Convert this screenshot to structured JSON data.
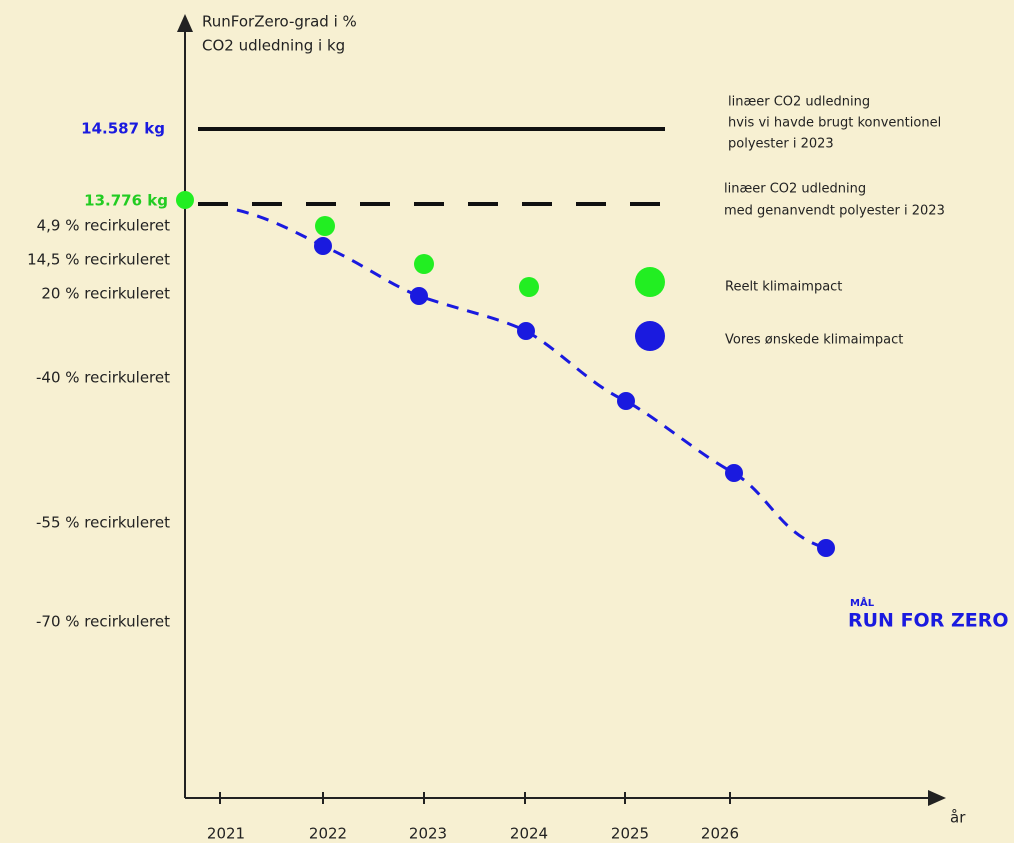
{
  "axis_title": [
    "RunForZero-grad i %",
    "CO2 udledning i kg"
  ],
  "x_axis_label": "år",
  "x_labels": [
    "2021",
    "2022",
    "2023",
    "2024",
    "2025",
    "2026"
  ],
  "y_labels": [
    "4,9 % recirkuleret",
    "14,5 % recirkuleret",
    "20 % recirkuleret",
    "-40 % recirkuleret",
    "-55 % recirkuleret",
    "-70 % recirkuleret"
  ],
  "kg_labels": [
    "14.587 kg",
    "13.776 kg"
  ],
  "annotations": [
    [
      "linæer CO2 udledning",
      "hvis vi havde brugt konventionel",
      "polyester i 2023"
    ],
    [
      "linæer CO2 udledning",
      "med genanvendt polyester i 2023"
    ]
  ],
  "legend": [
    "Reelt klimaimpact",
    "Vores ønskede klimaimpact"
  ],
  "goal": {
    "small": "MÅL",
    "big": "RUN FOR ZERO"
  }
}
